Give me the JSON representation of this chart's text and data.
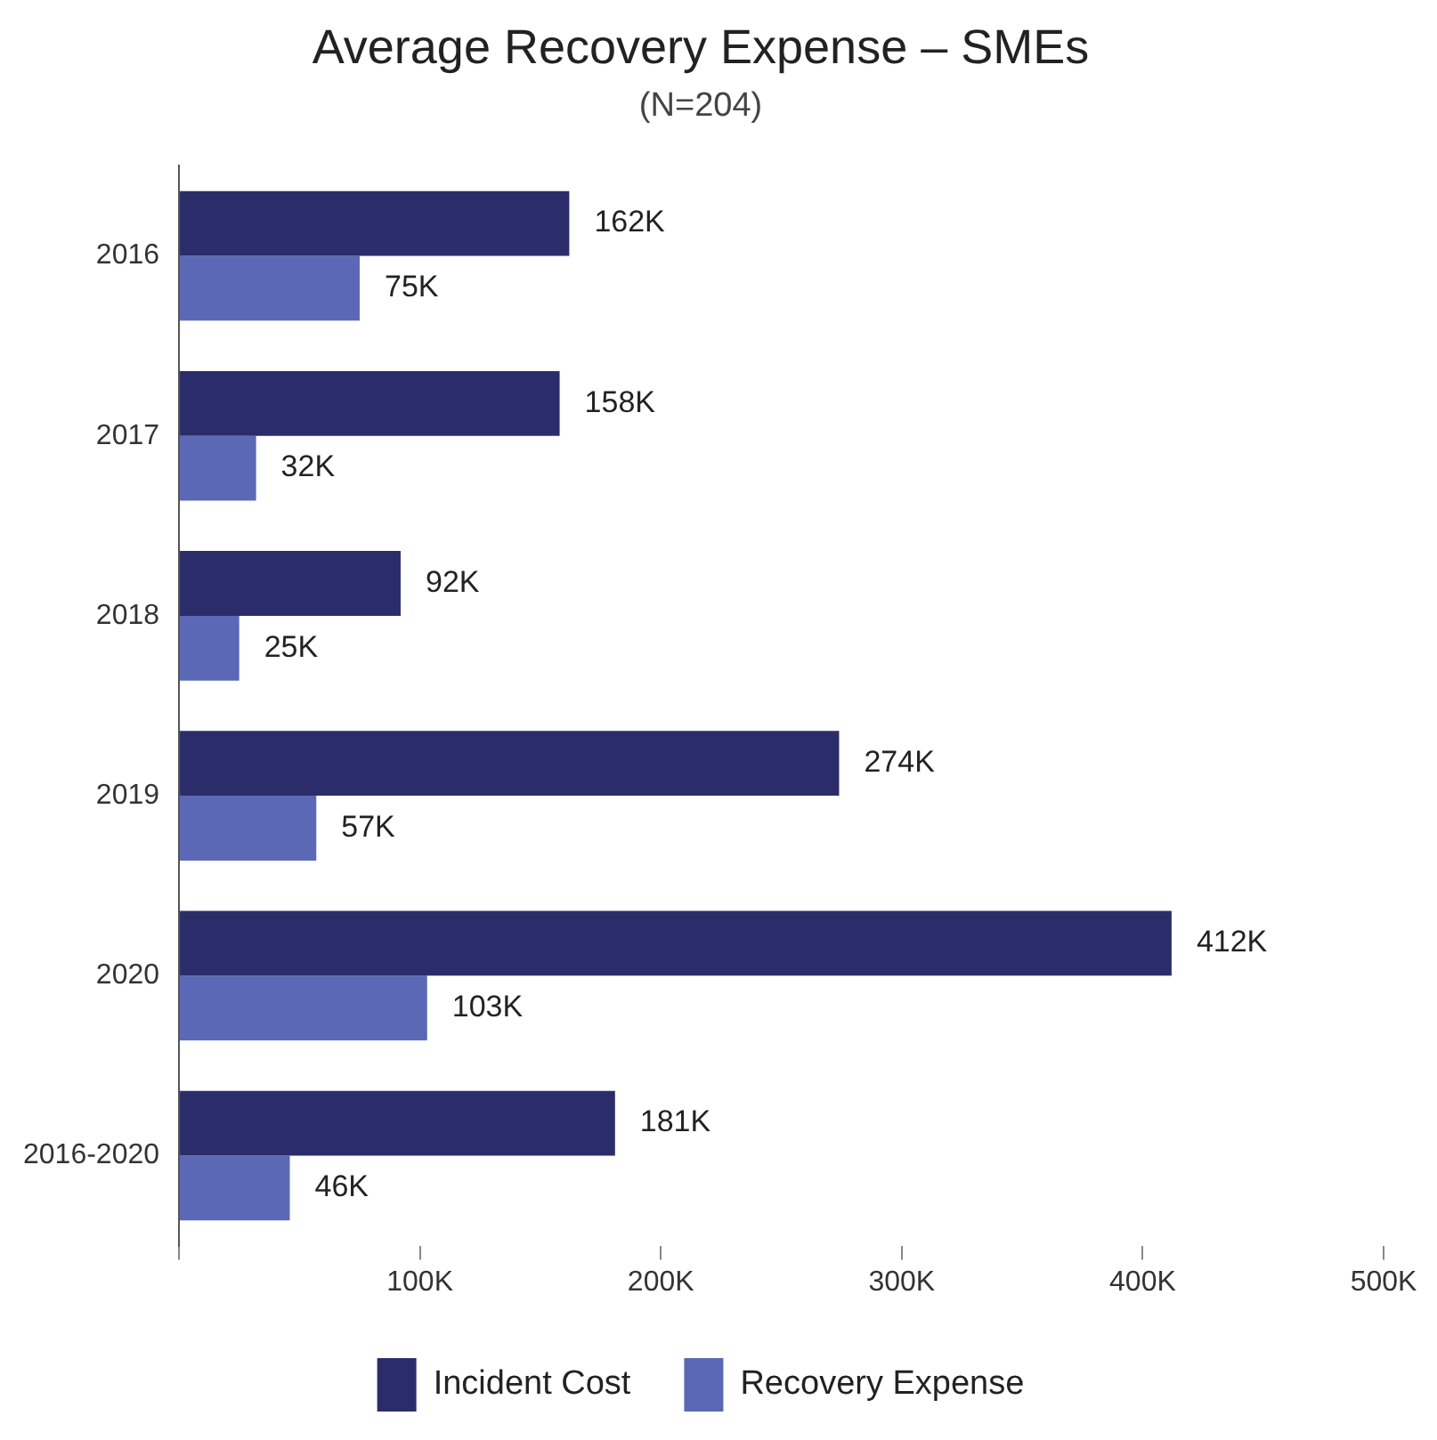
{
  "chart_data": {
    "type": "bar",
    "orientation": "horizontal",
    "title": "Average Recovery Expense – SMEs",
    "subtitle": "(N=204)",
    "categories": [
      "2016",
      "2017",
      "2018",
      "2019",
      "2020",
      "2016-2020"
    ],
    "series": [
      {
        "name": "Incident Cost",
        "color": "#2b2d6b",
        "values": [
          162,
          158,
          92,
          274,
          412,
          181
        ],
        "value_labels": [
          "162K",
          "158K",
          "92K",
          "274K",
          "412K",
          "181K"
        ]
      },
      {
        "name": "Recovery Expense",
        "color": "#5b68b5",
        "values": [
          75,
          32,
          25,
          57,
          103,
          46
        ],
        "value_labels": [
          "75K",
          "32K",
          "25K",
          "57K",
          "103K",
          "46K"
        ]
      }
    ],
    "xlim": [
      0,
      500
    ],
    "xticks": [
      {
        "value": 0,
        "label": null
      },
      {
        "value": 100,
        "label": "100K"
      },
      {
        "value": 200,
        "label": "200K"
      },
      {
        "value": 300,
        "label": "300K"
      },
      {
        "value": 400,
        "label": "400K"
      },
      {
        "value": 500,
        "label": "500K"
      }
    ],
    "grid": false,
    "legend": "bottom"
  }
}
